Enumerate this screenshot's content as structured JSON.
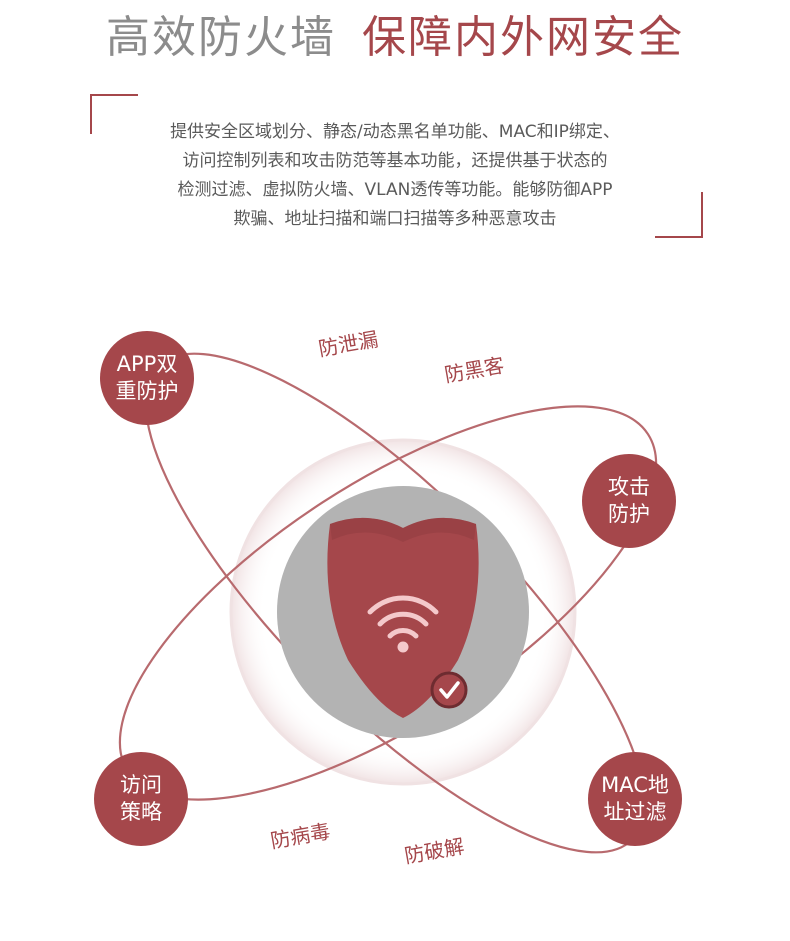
{
  "header": {
    "title_left": "高效防火墙",
    "title_right": "保障内外网安全"
  },
  "description": {
    "lines": [
      "提供安全区域划分、静态/动态黑名单功能、MAC和IP绑定、",
      "访问控制列表和攻击防范等基本功能，还提供基于状态的",
      "检测过滤、虚拟防火墙、VLAN透传等功能。能够防御APP",
      "欺骗、地址扫描和端口扫描等多种恶意攻击"
    ]
  },
  "nodes": {
    "app": [
      "APP双",
      "重防护"
    ],
    "attack": [
      "攻击",
      "防护"
    ],
    "access": [
      "访问",
      "策略"
    ],
    "mac": [
      "MAC地",
      "址过滤"
    ]
  },
  "tags": {
    "leak": "防泄漏",
    "hacker": "防黑客",
    "virus": "防病毒",
    "crack": "防破解"
  },
  "colors": {
    "accent": "#a5474b",
    "gray_title": "#8c8c8c",
    "shield_bg": "#b3b3b3",
    "orbit_line": "#b86a6e"
  },
  "icons": {
    "center": "shield-wifi-icon",
    "badge": "check-circle-icon"
  }
}
